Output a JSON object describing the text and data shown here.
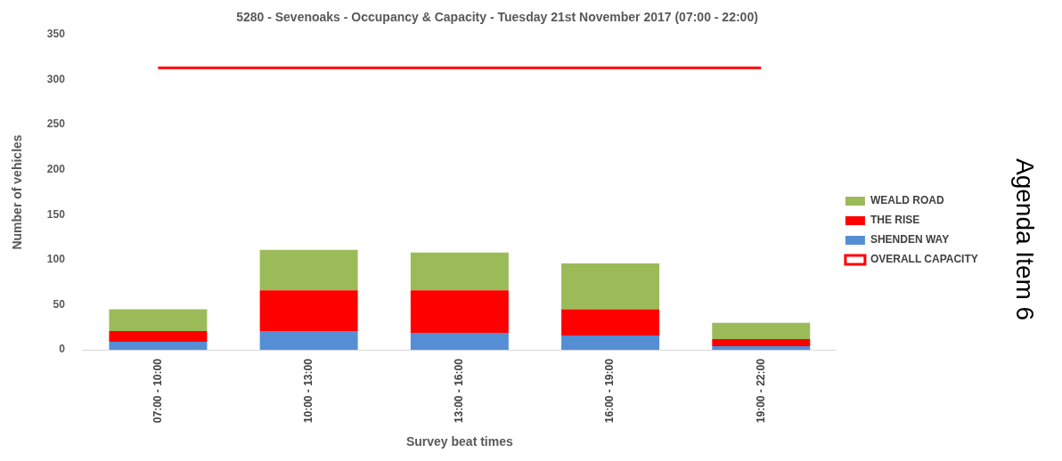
{
  "chart_data": {
    "type": "bar",
    "title": "5280 - Sevenoaks - Occupancy & Capacity - Tuesday 21st November 2017 (07:00 - 22:00)",
    "xlabel": "Survey beat times",
    "ylabel": "Number of vehicles",
    "categories": [
      "07:00 - 10:00",
      "10:00 - 13:00",
      "13:00 - 16:00",
      "16:00 - 19:00",
      "19:00 - 22:00"
    ],
    "stacked": true,
    "ylim": [
      0,
      350
    ],
    "yticks": [
      0,
      50,
      100,
      150,
      200,
      250,
      300,
      350
    ],
    "grid": false,
    "legend": "right",
    "annotations": [
      "Agenda Item 6"
    ],
    "series": [
      {
        "name": "SHENDEN WAY",
        "color": "#558ed5",
        "values": [
          9,
          21,
          19,
          16,
          4
        ]
      },
      {
        "name": "THE RISE",
        "color": "#ff0000",
        "values": [
          12,
          45,
          47,
          29,
          8
        ]
      },
      {
        "name": "WEALD ROAD",
        "color": "#9bbb59",
        "values": [
          24,
          45,
          42,
          51,
          18
        ]
      },
      {
        "name": "OVERALL CAPACITY",
        "type": "line",
        "color": "#ff0000",
        "values": [
          313,
          313,
          313,
          313,
          313
        ]
      }
    ]
  }
}
